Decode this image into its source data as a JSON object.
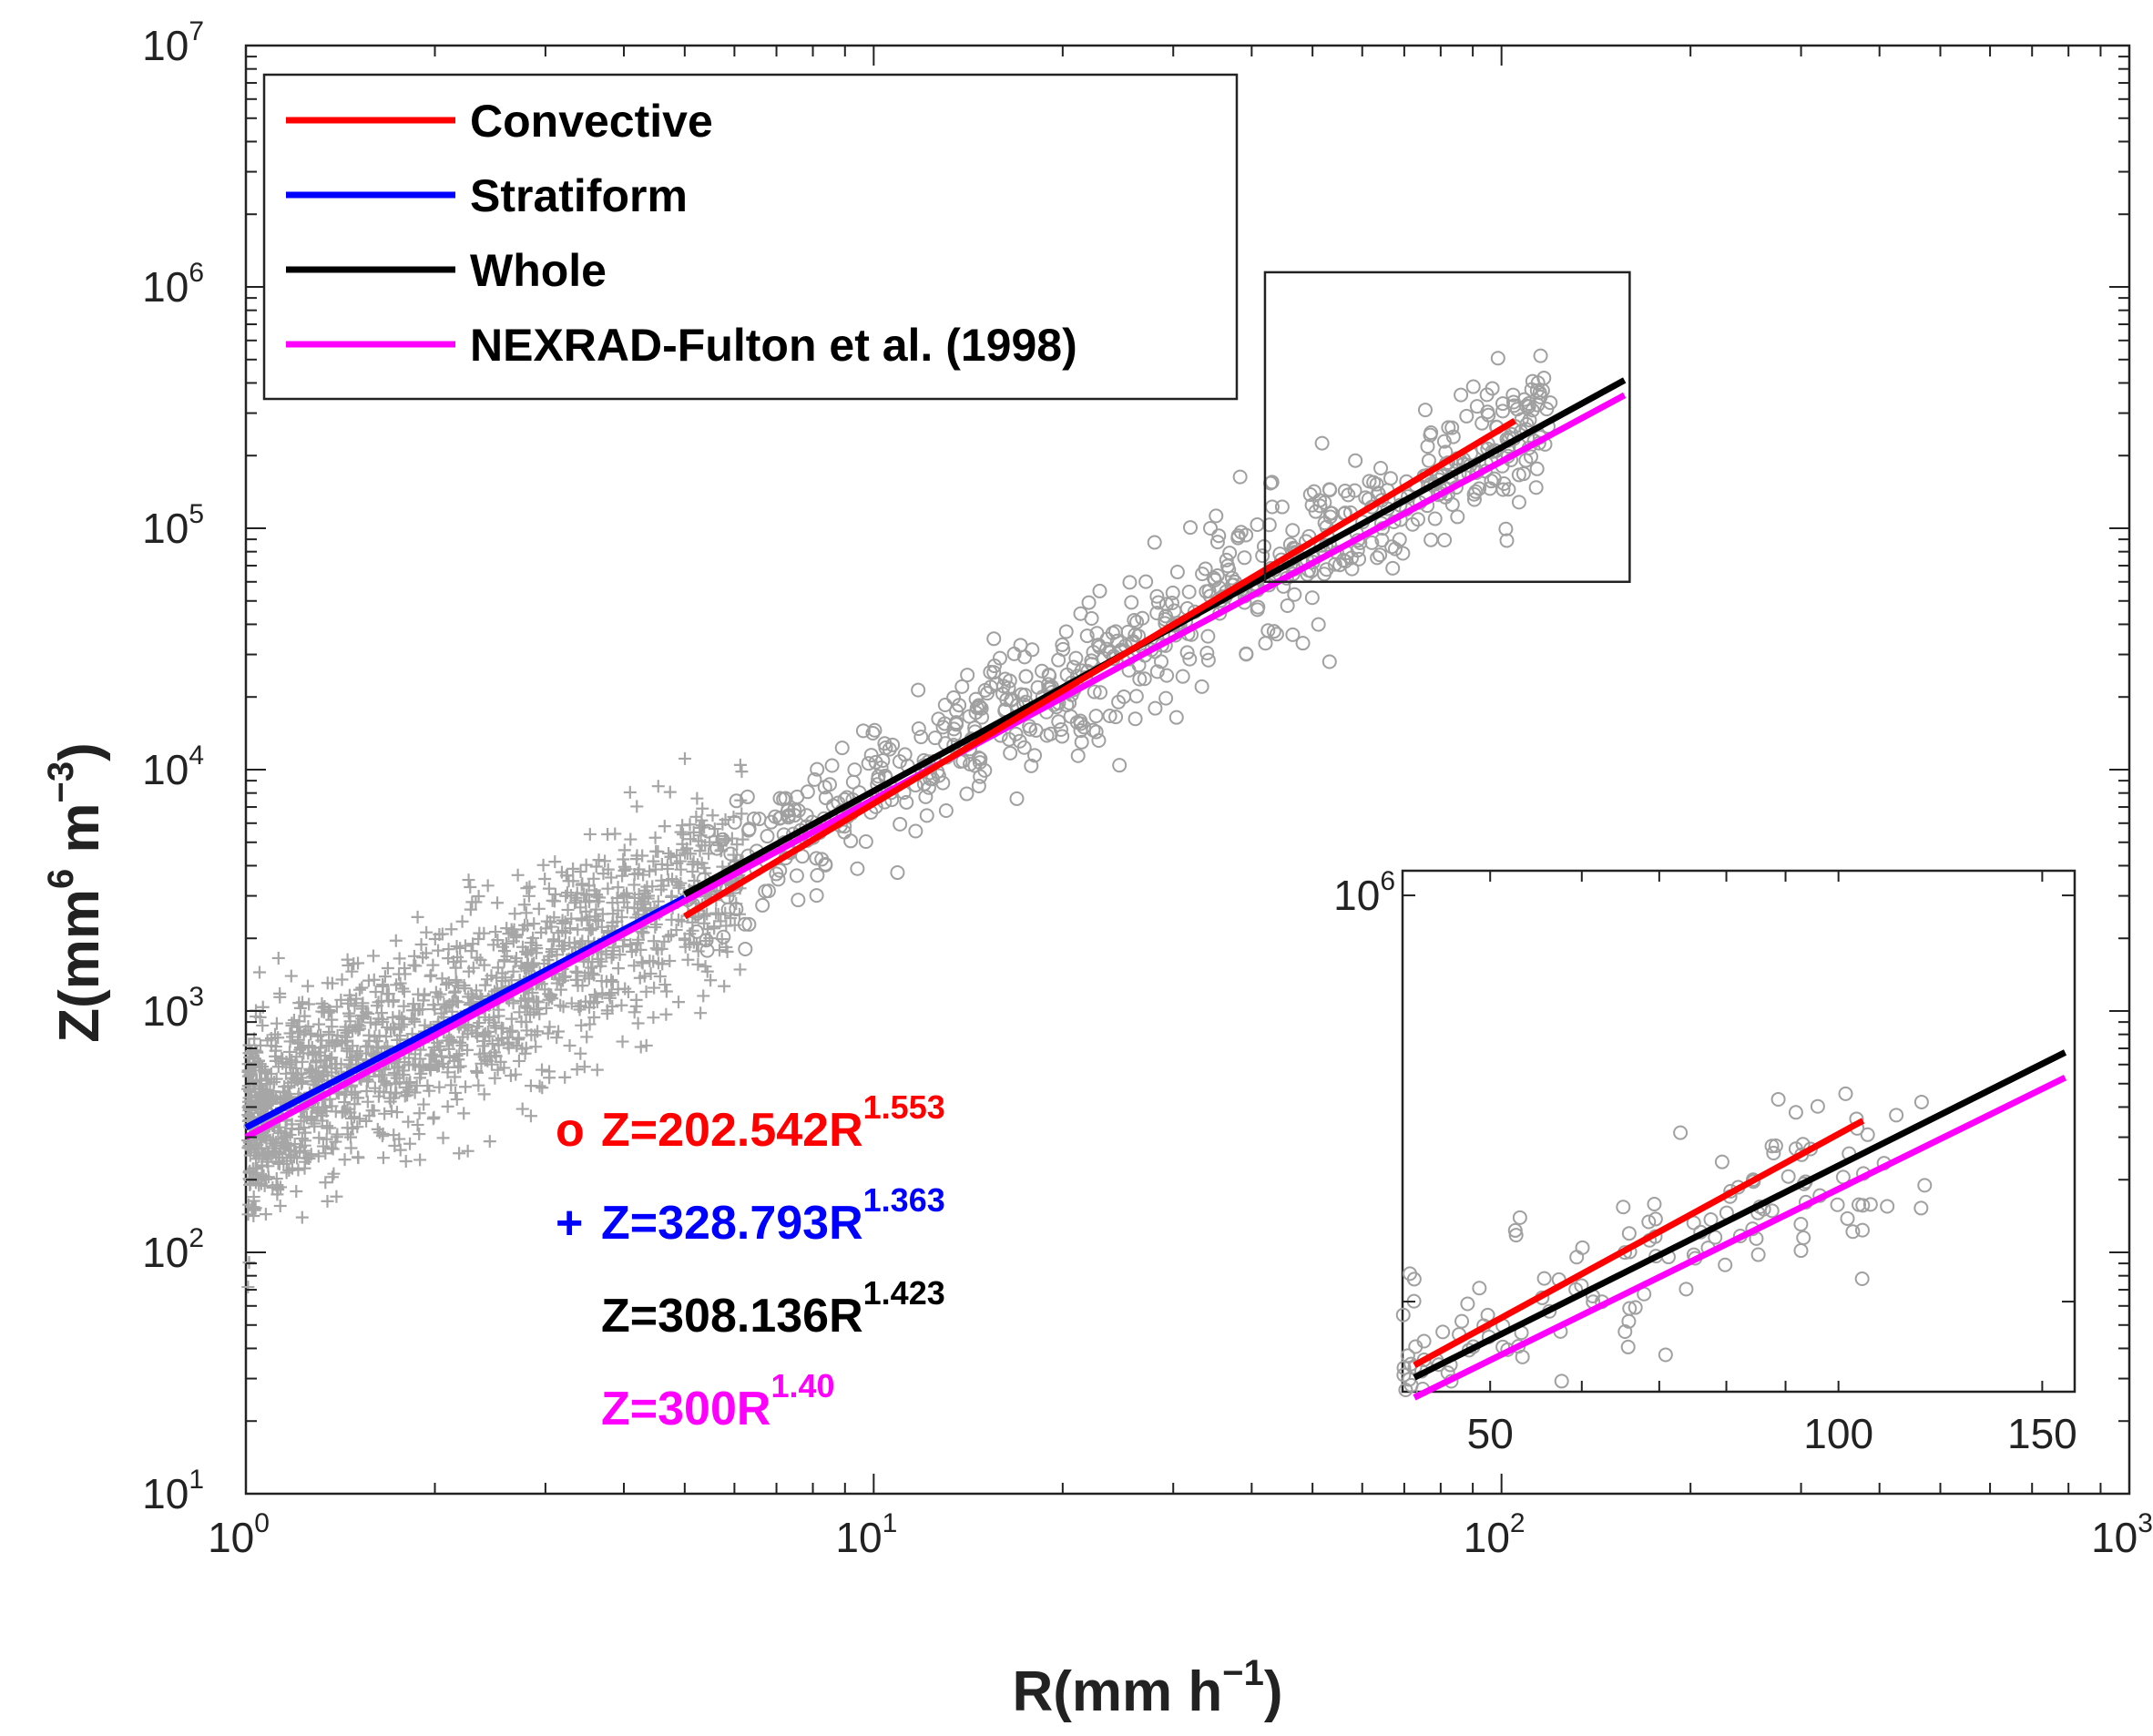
{
  "chart_data": [
    {
      "type": "scatter",
      "name": "main",
      "xscale": "log",
      "yscale": "log",
      "xlim": [
        1,
        1000
      ],
      "ylim": [
        10,
        10000000
      ],
      "xlabel": "R(mm h⁻¹)",
      "ylabel": "Z(mm⁶ m⁻³)",
      "xlabel_parts": {
        "base": "R(mm h",
        "sup": "−1",
        "close": ")"
      },
      "ylabel_parts": {
        "base": "Z(mm",
        "sup1": "6",
        "mid": " m",
        "sup2": "−3",
        "close": ")"
      },
      "xticks": [
        {
          "label": "10",
          "exp": "0"
        },
        {
          "label": "10",
          "exp": "1"
        },
        {
          "label": "10",
          "exp": "2"
        },
        {
          "label": "10",
          "exp": "3"
        }
      ],
      "yticks": [
        {
          "label": "10",
          "exp": "1"
        },
        {
          "label": "10",
          "exp": "2"
        },
        {
          "label": "10",
          "exp": "3"
        },
        {
          "label": "10",
          "exp": "4"
        },
        {
          "label": "10",
          "exp": "5"
        },
        {
          "label": "10",
          "exp": "6"
        },
        {
          "label": "10",
          "exp": "7"
        }
      ],
      "legend": [
        {
          "label": "Convective",
          "color": "#ff0000"
        },
        {
          "label": "Stratiform",
          "color": "#0000ff"
        },
        {
          "label": "Whole",
          "color": "#000000"
        },
        {
          "label": "NEXRAD-Fulton et al. (1998)",
          "color": "#ff00ff"
        }
      ],
      "legend_position": "top-left",
      "series": [
        {
          "name": "Convective",
          "a": 202.542,
          "b": 1.553,
          "xrange": [
            5,
            105
          ],
          "color": "#ff0000"
        },
        {
          "name": "Stratiform",
          "a": 328.793,
          "b": 1.363,
          "xrange": [
            1,
            5
          ],
          "color": "#0000ff"
        },
        {
          "name": "Whole",
          "a": 308.136,
          "b": 1.423,
          "xrange": [
            5,
            157
          ],
          "color": "#000000"
        },
        {
          "name": "NEXRAD",
          "a": 300,
          "b": 1.4,
          "xrange": [
            1,
            157
          ],
          "color": "#ff00ff"
        }
      ],
      "scatter_note": "gray markers: 'o' convective samples (R ~ 5-120), '+' stratiform samples (R ~ 1-6)",
      "zoom_box": {
        "xrange": [
          42,
          160
        ],
        "yrange": [
          60000,
          1150000
        ]
      },
      "equations": [
        {
          "marker": "o",
          "text": "Z=202.542R",
          "exp": "1.553",
          "color": "#ff0000"
        },
        {
          "marker": "+",
          "text": "Z=328.793R",
          "exp": "1.363",
          "color": "#0000ff"
        },
        {
          "marker": "",
          "text": "Z=308.136R",
          "exp": "1.423",
          "color": "#000000"
        },
        {
          "marker": "",
          "text": "Z=300R",
          "exp": "1.40",
          "color": "#ff00ff"
        }
      ]
    },
    {
      "type": "scatter",
      "name": "inset",
      "xscale": "log",
      "yscale": "log",
      "xlim": [
        42,
        160
      ],
      "ylim": [
        60000,
        1150000
      ],
      "xticks": [
        "50",
        "100",
        "150"
      ],
      "ytick_label": {
        "label": "10",
        "exp": "6"
      }
    }
  ]
}
